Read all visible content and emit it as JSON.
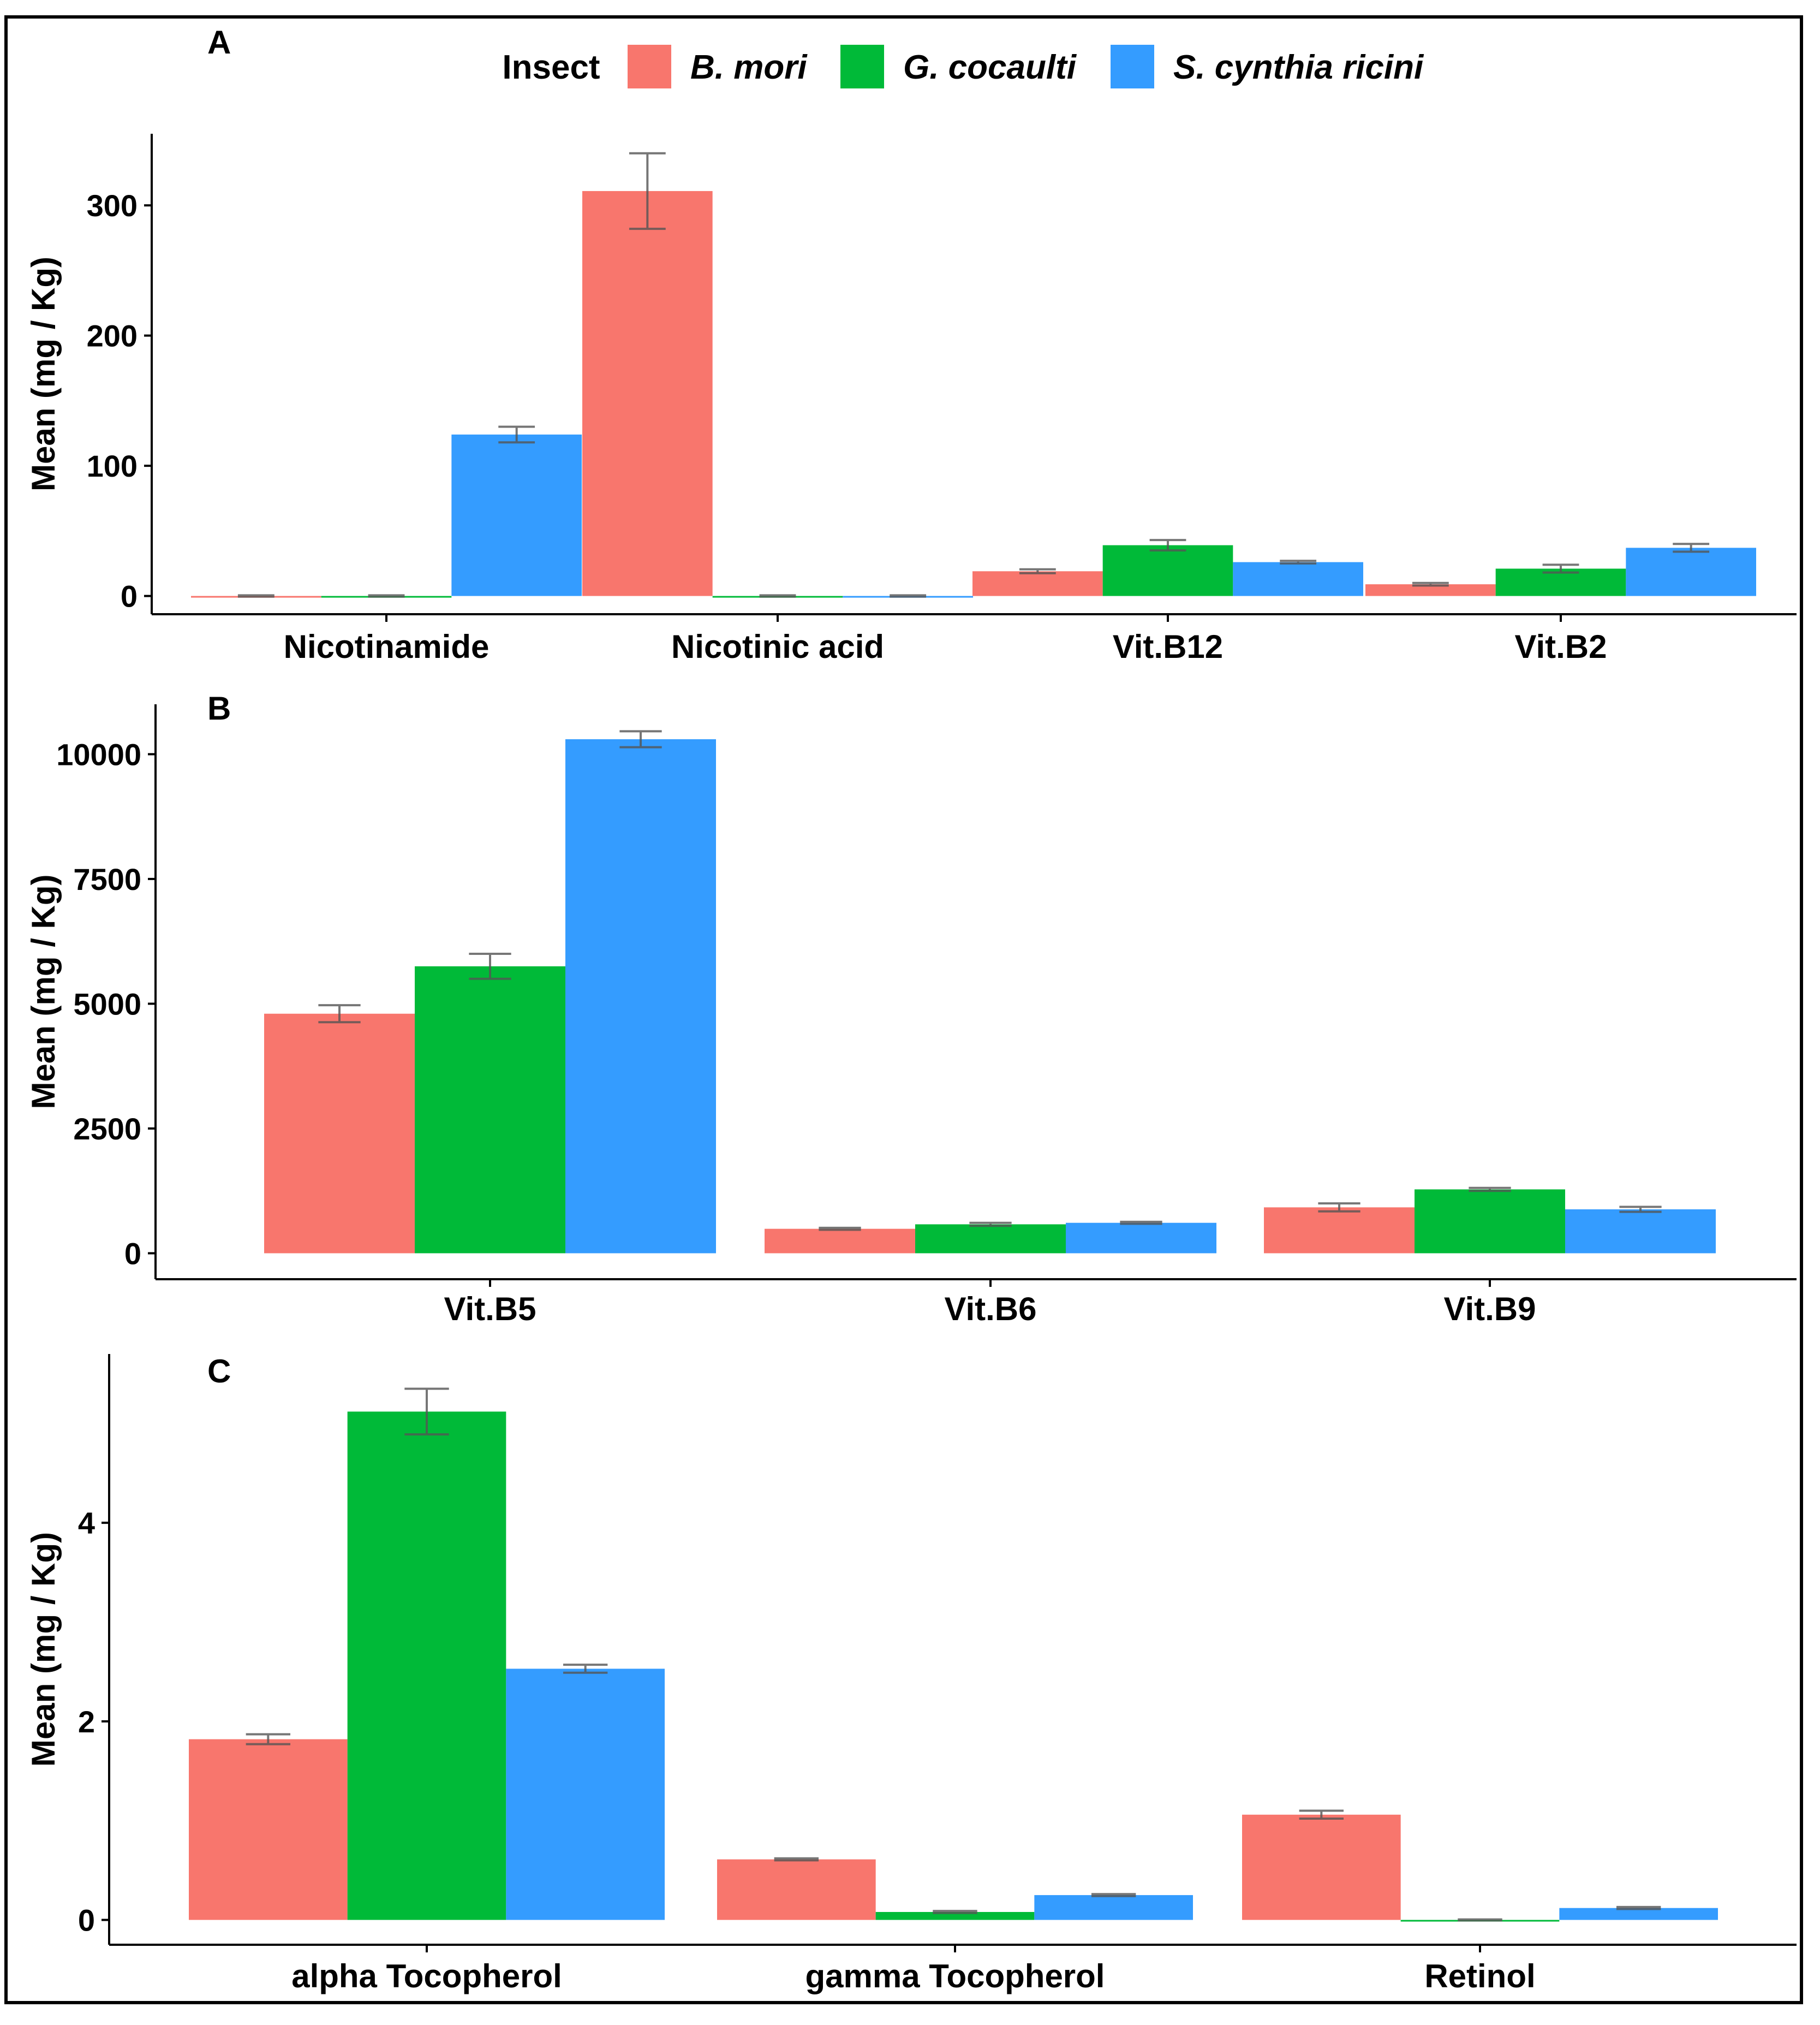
{
  "legend": {
    "title": "Insect",
    "entries": [
      {
        "label": "B. mori",
        "color": "#f8766d"
      },
      {
        "label": "G. cocaulti",
        "color": "#00ba38"
      },
      {
        "label": "S. cynthia ricini",
        "color": "#349cff"
      }
    ]
  },
  "error_bar_color": "#555555",
  "chart_data": [
    {
      "type": "bar",
      "panel_label": "A",
      "title": "",
      "xlabel": "",
      "ylabel": "Mean (mg / Kg)",
      "ylim": [
        -14,
        355
      ],
      "yticks": [
        0,
        100,
        200,
        300
      ],
      "ytick_labels": [
        "0",
        "100",
        "200",
        "300"
      ],
      "categories": [
        "Nicotinamide",
        "Nicotinic acid",
        "Vit.B12",
        "Vit.B2"
      ],
      "series": [
        {
          "name": "B. mori",
          "values": [
            0,
            311,
            19,
            9
          ],
          "errors": [
            0.5,
            29,
            1.5,
            1
          ]
        },
        {
          "name": "G. cocaulti",
          "values": [
            0,
            0,
            39,
            21
          ],
          "errors": [
            0.5,
            0.5,
            4,
            3
          ]
        },
        {
          "name": "S. cynthia ricini",
          "values": [
            124,
            0,
            26,
            37
          ],
          "errors": [
            6,
            0.5,
            1,
            3
          ]
        }
      ]
    },
    {
      "type": "bar",
      "panel_label": "B",
      "title": "",
      "xlabel": "",
      "ylabel": "Mean (mg / Kg)",
      "ylim": [
        -520,
        11000
      ],
      "yticks": [
        0,
        2500,
        5000,
        7500,
        10000
      ],
      "ytick_labels": [
        "0",
        "2500",
        "5000",
        "7500",
        "10000"
      ],
      "categories": [
        "Vit.B5",
        "Vit.B6",
        "Vit.B9"
      ],
      "series": [
        {
          "name": "B. mori",
          "values": [
            4800,
            490,
            920
          ],
          "errors": [
            170,
            20,
            80
          ]
        },
        {
          "name": "G. cocaulti",
          "values": [
            5750,
            580,
            1280
          ],
          "errors": [
            250,
            30,
            30
          ]
        },
        {
          "name": "S. cynthia ricini",
          "values": [
            10300,
            610,
            880
          ],
          "errors": [
            160,
            20,
            50
          ]
        }
      ]
    },
    {
      "type": "bar",
      "panel_label": "C",
      "title": "",
      "xlabel": "",
      "ylabel": "Mean (mg / Kg)",
      "ylim": [
        -0.25,
        5.7
      ],
      "yticks": [
        0,
        2,
        4
      ],
      "ytick_labels": [
        "0",
        "2",
        "4"
      ],
      "categories": [
        "alpha Tocopherol",
        "gamma Tocopherol",
        "Retinol"
      ],
      "series": [
        {
          "name": "B. mori",
          "values": [
            1.82,
            0.61,
            1.06
          ],
          "errors": [
            0.05,
            0.01,
            0.04
          ]
        },
        {
          "name": "G. cocaulti",
          "values": [
            5.12,
            0.08,
            0.0
          ],
          "errors": [
            0.23,
            0.01,
            0.005
          ]
        },
        {
          "name": "S. cynthia ricini",
          "values": [
            2.53,
            0.25,
            0.12
          ],
          "errors": [
            0.04,
            0.01,
            0.01
          ]
        }
      ]
    }
  ]
}
